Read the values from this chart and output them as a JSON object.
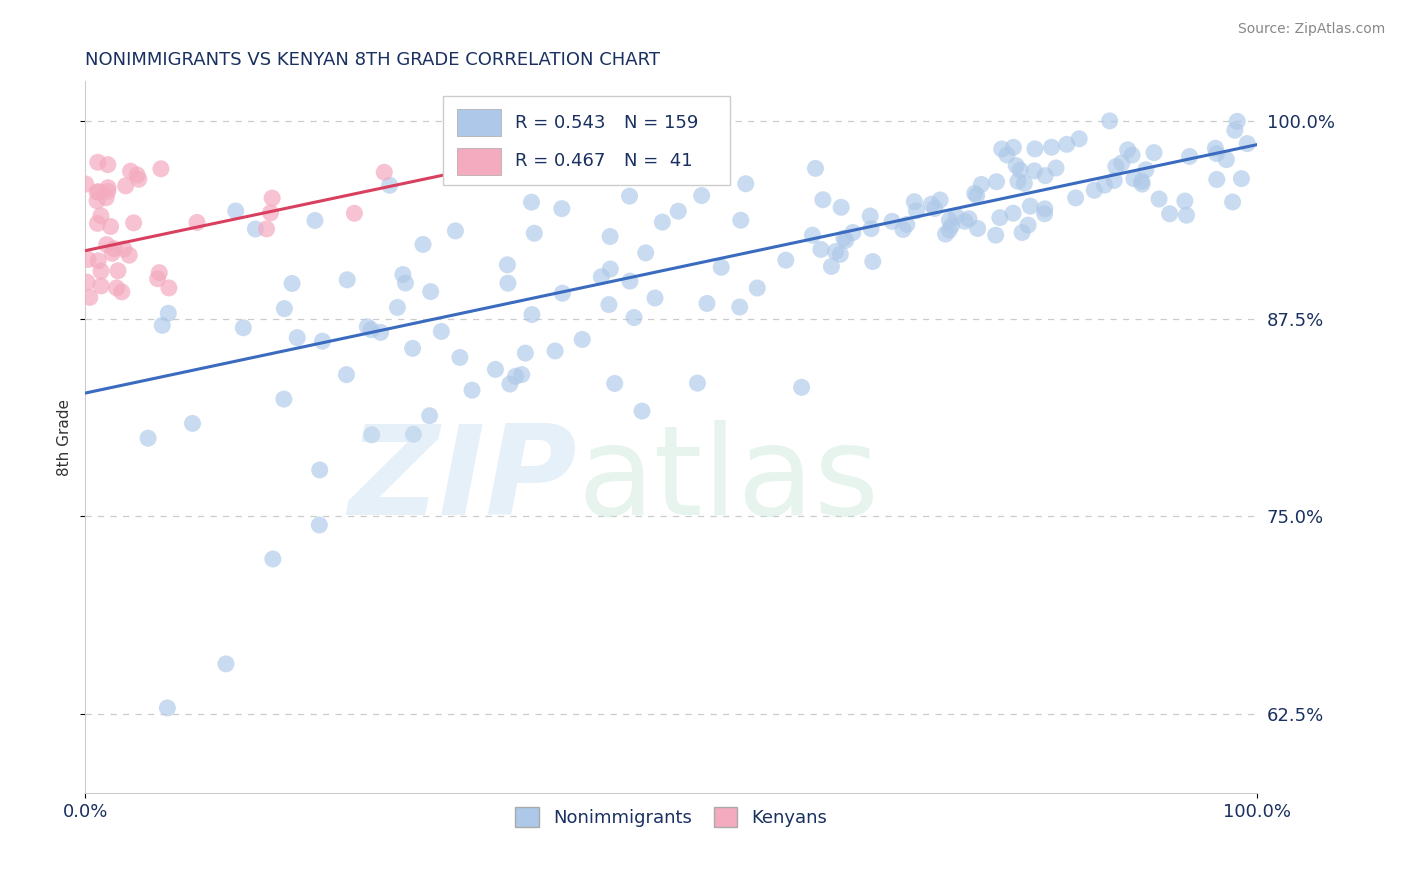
{
  "title": "NONIMMIGRANTS VS KENYAN 8TH GRADE CORRELATION CHART",
  "source_text": "Source: ZipAtlas.com",
  "ylabel": "8th Grade",
  "y_tick_labels_right": [
    "62.5%",
    "75.0%",
    "87.5%",
    "100.0%"
  ],
  "y_tick_values_right": [
    0.625,
    0.75,
    0.875,
    1.0
  ],
  "blue_R": 0.543,
  "blue_N": 159,
  "pink_R": 0.467,
  "pink_N": 41,
  "blue_color": "#adc8e8",
  "pink_color": "#f4aabf",
  "blue_line_color": "#3a6bbf",
  "pink_line_color": "#d94060",
  "title_color": "#1a3060",
  "axis_text_color": "#1a3060",
  "source_color": "#888888",
  "grid_color": "#cccccc",
  "blue_line_x": [
    0.0,
    1.0
  ],
  "blue_line_y": [
    0.828,
    0.985
  ],
  "pink_line_x": [
    0.0,
    0.32
  ],
  "pink_line_y": [
    0.918,
    0.968
  ],
  "xlim": [
    0.0,
    1.0
  ],
  "ylim": [
    0.575,
    1.025
  ]
}
